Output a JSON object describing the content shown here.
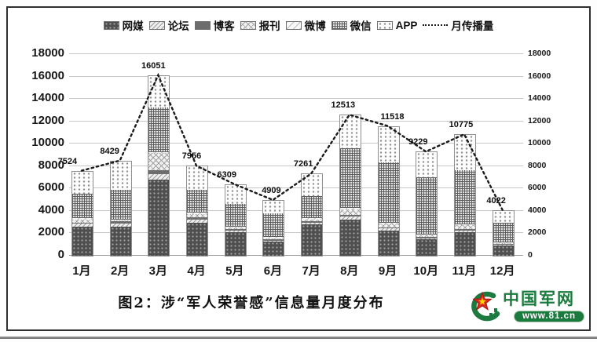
{
  "page": {
    "caption": "图2：涉“军人荣誉感”信息量月度分布",
    "logo": {
      "name": "中国军网",
      "url_text": "www.81.cn"
    },
    "colors": {
      "logo_green": "#1b7a3d",
      "logo_red": "#dd2a1b",
      "logo_star_inner": "#ffd900",
      "line_color": "#1a1a1a"
    }
  },
  "chart_data": {
    "type": "bar",
    "subtype": "stacked-bars-with-dotted-line",
    "title": "图2：涉“军人荣誉感”信息量月度分布",
    "categories": [
      "1月",
      "2月",
      "3月",
      "4月",
      "5月",
      "6月",
      "7月",
      "8月",
      "9月",
      "10月",
      "11月",
      "12月"
    ],
    "series": [
      {
        "name": "网媒",
        "pattern": "p-wangmei",
        "values": [
          2600,
          2600,
          6800,
          2950,
          2100,
          1260,
          2800,
          3200,
          2250,
          1450,
          2100,
          900
        ]
      },
      {
        "name": "论坛",
        "pattern": "p-luntan",
        "values": [
          250,
          300,
          500,
          300,
          150,
          100,
          150,
          300,
          200,
          100,
          150,
          100
        ]
      },
      {
        "name": "博客",
        "pattern": "p-boke",
        "values": [
          100,
          150,
          350,
          150,
          100,
          80,
          100,
          150,
          100,
          100,
          150,
          50
        ]
      },
      {
        "name": "报刊",
        "pattern": "p-baokan",
        "values": [
          250,
          100,
          1500,
          300,
          150,
          120,
          200,
          500,
          300,
          150,
          300,
          100
        ]
      },
      {
        "name": "微博",
        "pattern": "p-weibo",
        "values": [
          150,
          100,
          100,
          150,
          100,
          100,
          100,
          150,
          100,
          100,
          100,
          72
        ]
      },
      {
        "name": "微信",
        "pattern": "p-weixin",
        "values": [
          2200,
          2600,
          4000,
          2000,
          2000,
          2100,
          2000,
          5300,
          5400,
          5100,
          4800,
          1750
        ]
      },
      {
        "name": "APP",
        "pattern": "p-app",
        "values": [
          1974,
          2579,
          2801,
          2106,
          1709,
          1149,
          1911,
          2913,
          3168,
          2229,
          3175,
          1050
        ]
      }
    ],
    "line_series": {
      "name": "月传播量",
      "values": [
        7524,
        8429,
        16051,
        7956,
        6309,
        4909,
        7261,
        12513,
        11518,
        9229,
        10775,
        4022
      ]
    },
    "y_axis": {
      "min": 0,
      "max": 18000,
      "step": 2000,
      "ticks": [
        0,
        2000,
        4000,
        6000,
        8000,
        10000,
        12000,
        14000,
        16000,
        18000
      ],
      "dual_axis": true
    },
    "legend_entries": [
      "网媒",
      "论坛",
      "博客",
      "报刊",
      "微博",
      "微信",
      "APP",
      "月传播量"
    ],
    "grid": true,
    "legend_position": "top-center"
  }
}
